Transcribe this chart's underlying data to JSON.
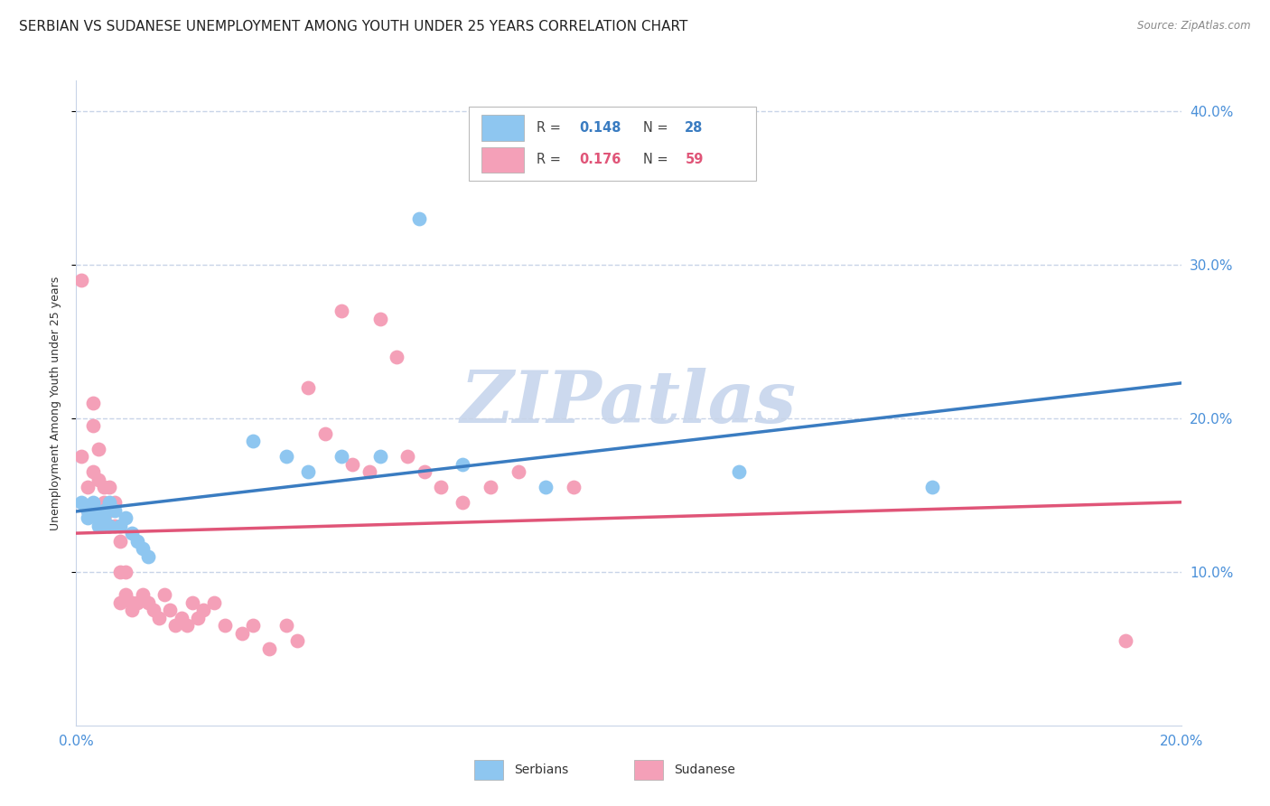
{
  "title": "SERBIAN VS SUDANESE UNEMPLOYMENT AMONG YOUTH UNDER 25 YEARS CORRELATION CHART",
  "source": "Source: ZipAtlas.com",
  "ylabel": "Unemployment Among Youth under 25 years",
  "x_min": 0.0,
  "x_max": 0.2,
  "y_min": 0.0,
  "y_max": 0.42,
  "y_ticks": [
    0.1,
    0.2,
    0.3,
    0.4
  ],
  "y_tick_labels": [
    "10.0%",
    "20.0%",
    "30.0%",
    "40.0%"
  ],
  "x_ticks": [
    0.0,
    0.04,
    0.08,
    0.12,
    0.16,
    0.2
  ],
  "x_tick_labels": [
    "0.0%",
    "",
    "",
    "",
    "",
    "20.0%"
  ],
  "serbians_R": 0.148,
  "serbians_N": 28,
  "sudanese_R": 0.176,
  "sudanese_N": 59,
  "serbian_color": "#8ec6f0",
  "sudanese_color": "#f4a0b8",
  "trendline_serbian_color": "#3a7cc1",
  "trendline_sudanese_color": "#e05578",
  "watermark_color": "#ccd9ee",
  "serbian_x": [
    0.001,
    0.002,
    0.002,
    0.003,
    0.003,
    0.004,
    0.004,
    0.005,
    0.005,
    0.006,
    0.006,
    0.007,
    0.008,
    0.009,
    0.01,
    0.011,
    0.012,
    0.013,
    0.032,
    0.038,
    0.042,
    0.048,
    0.055,
    0.062,
    0.07,
    0.085,
    0.12,
    0.155
  ],
  "serbian_y": [
    0.145,
    0.14,
    0.135,
    0.14,
    0.145,
    0.135,
    0.13,
    0.14,
    0.135,
    0.145,
    0.13,
    0.14,
    0.13,
    0.135,
    0.125,
    0.12,
    0.115,
    0.11,
    0.185,
    0.175,
    0.165,
    0.175,
    0.175,
    0.33,
    0.17,
    0.155,
    0.165,
    0.155
  ],
  "sudanese_x": [
    0.001,
    0.001,
    0.002,
    0.002,
    0.003,
    0.003,
    0.003,
    0.004,
    0.004,
    0.005,
    0.005,
    0.005,
    0.006,
    0.006,
    0.006,
    0.007,
    0.007,
    0.008,
    0.008,
    0.008,
    0.009,
    0.009,
    0.01,
    0.01,
    0.011,
    0.012,
    0.013,
    0.014,
    0.015,
    0.016,
    0.017,
    0.018,
    0.019,
    0.02,
    0.021,
    0.022,
    0.023,
    0.025,
    0.027,
    0.03,
    0.032,
    0.035,
    0.038,
    0.04,
    0.042,
    0.045,
    0.048,
    0.05,
    0.053,
    0.055,
    0.058,
    0.06,
    0.063,
    0.066,
    0.07,
    0.075,
    0.08,
    0.09,
    0.19
  ],
  "sudanese_y": [
    0.175,
    0.29,
    0.14,
    0.155,
    0.195,
    0.165,
    0.21,
    0.18,
    0.16,
    0.155,
    0.145,
    0.135,
    0.155,
    0.14,
    0.13,
    0.145,
    0.13,
    0.12,
    0.1,
    0.08,
    0.1,
    0.085,
    0.08,
    0.075,
    0.08,
    0.085,
    0.08,
    0.075,
    0.07,
    0.085,
    0.075,
    0.065,
    0.07,
    0.065,
    0.08,
    0.07,
    0.075,
    0.08,
    0.065,
    0.06,
    0.065,
    0.05,
    0.065,
    0.055,
    0.22,
    0.19,
    0.27,
    0.17,
    0.165,
    0.265,
    0.24,
    0.175,
    0.165,
    0.155,
    0.145,
    0.155,
    0.165,
    0.155,
    0.055
  ],
  "background_color": "#ffffff",
  "grid_color": "#c8d4e8",
  "tick_label_color": "#4a90d9",
  "title_fontsize": 11,
  "axis_label_fontsize": 9,
  "legend_fontsize": 10
}
